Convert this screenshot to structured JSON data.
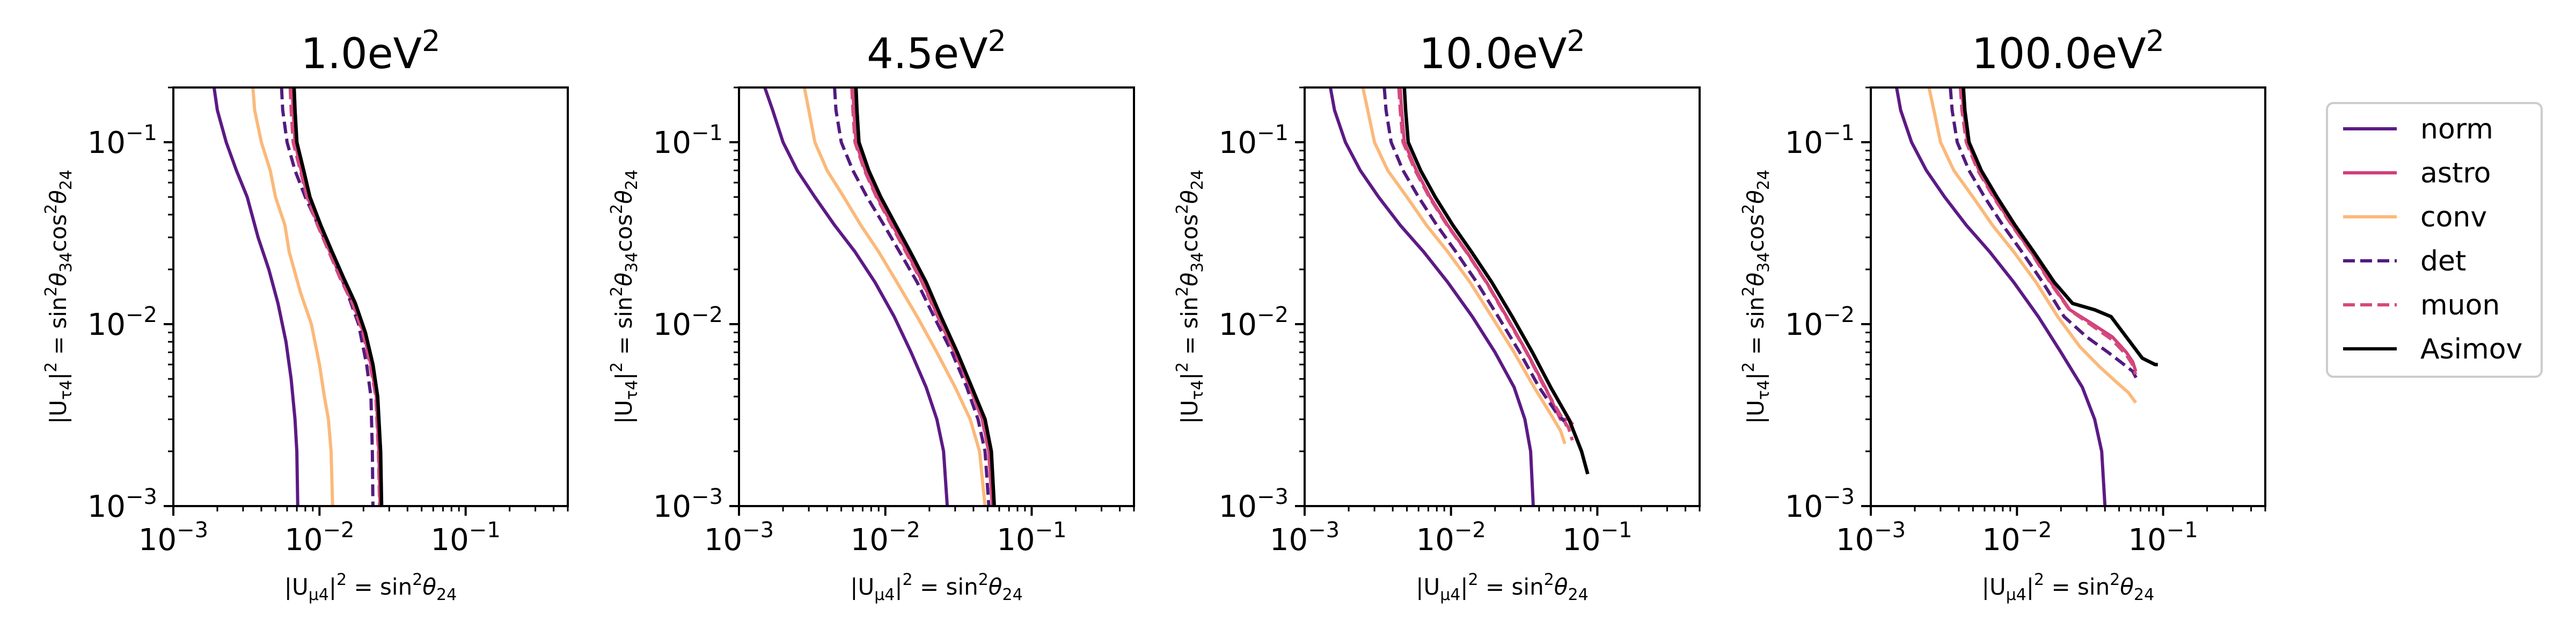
{
  "chart_data": [
    {
      "type": "line",
      "title": "1.0eV",
      "title_sup": "2",
      "xscale": "log",
      "yscale": "log",
      "xlim": [
        0.001,
        0.5
      ],
      "ylim": [
        0.001,
        0.2
      ],
      "series": [
        {
          "name": "norm",
          "color": "#5c1a85",
          "dash": false,
          "x": [
            0.0019,
            0.002,
            0.0023,
            0.0027,
            0.0032,
            0.0038,
            0.0045,
            0.0052,
            0.0059,
            0.0064,
            0.0068,
            0.007,
            0.0071
          ],
          "y": [
            0.2,
            0.15,
            0.1,
            0.07,
            0.05,
            0.03,
            0.02,
            0.013,
            0.008,
            0.005,
            0.003,
            0.002,
            0.001
          ]
        },
        {
          "name": "astro",
          "color": "#d13f7c",
          "dash": false,
          "x": [
            0.0065,
            0.0066,
            0.0068,
            0.0075,
            0.0083,
            0.0098,
            0.0118,
            0.014,
            0.017,
            0.02,
            0.0225,
            0.0245,
            0.0255,
            0.026
          ],
          "y": [
            0.2,
            0.15,
            0.1,
            0.07,
            0.05,
            0.035,
            0.025,
            0.018,
            0.013,
            0.009,
            0.006,
            0.004,
            0.002,
            0.001
          ]
        },
        {
          "name": "conv",
          "color": "#fbb97a",
          "dash": false,
          "x": [
            0.0035,
            0.0036,
            0.004,
            0.0046,
            0.005,
            0.0058,
            0.0062,
            0.0074,
            0.0088,
            0.01,
            0.0108,
            0.0115,
            0.012,
            0.0123
          ],
          "y": [
            0.2,
            0.15,
            0.1,
            0.07,
            0.05,
            0.035,
            0.025,
            0.015,
            0.01,
            0.006,
            0.004,
            0.003,
            0.002,
            0.001
          ]
        },
        {
          "name": "det",
          "color": "#521b80",
          "dash": true,
          "x": [
            0.0055,
            0.0056,
            0.006,
            0.0068,
            0.008,
            0.0098,
            0.012,
            0.015,
            0.0185,
            0.021,
            0.0225,
            0.023,
            0.0232
          ],
          "y": [
            0.2,
            0.15,
            0.1,
            0.07,
            0.05,
            0.035,
            0.025,
            0.016,
            0.01,
            0.006,
            0.004,
            0.002,
            0.001
          ]
        },
        {
          "name": "muon",
          "color": "#d6497c",
          "dash": true,
          "x": [
            0.0063,
            0.0064,
            0.0066,
            0.0074,
            0.0082,
            0.0097,
            0.0116,
            0.0138,
            0.0168,
            0.0198,
            0.0222,
            0.0243,
            0.0253,
            0.0258
          ],
          "y": [
            0.2,
            0.15,
            0.1,
            0.07,
            0.05,
            0.035,
            0.025,
            0.018,
            0.013,
            0.009,
            0.006,
            0.004,
            0.002,
            0.001
          ]
        },
        {
          "name": "Asimov",
          "color": "#000000",
          "dash": false,
          "x": [
            0.0067,
            0.0068,
            0.007,
            0.0078,
            0.0086,
            0.0102,
            0.0122,
            0.0146,
            0.0176,
            0.0206,
            0.0232,
            0.025,
            0.0262,
            0.0266
          ],
          "y": [
            0.2,
            0.15,
            0.1,
            0.07,
            0.05,
            0.035,
            0.025,
            0.018,
            0.013,
            0.009,
            0.006,
            0.004,
            0.002,
            0.001
          ]
        }
      ]
    },
    {
      "type": "line",
      "title": "4.5eV",
      "title_sup": "2",
      "xscale": "log",
      "yscale": "log",
      "xlim": [
        0.001,
        0.5
      ],
      "ylim": [
        0.001,
        0.2
      ],
      "series": [
        {
          "name": "norm",
          "color": "#5c1a85",
          "dash": false,
          "x": [
            0.0015,
            0.0017,
            0.002,
            0.0025,
            0.0033,
            0.0045,
            0.0062,
            0.0085,
            0.0115,
            0.015,
            0.019,
            0.0225,
            0.025,
            0.0265
          ],
          "y": [
            0.2,
            0.15,
            0.1,
            0.07,
            0.05,
            0.035,
            0.025,
            0.017,
            0.011,
            0.007,
            0.0045,
            0.003,
            0.002,
            0.001
          ]
        },
        {
          "name": "astro",
          "color": "#d13f7c",
          "dash": false,
          "x": [
            0.006,
            0.0061,
            0.0063,
            0.0073,
            0.0088,
            0.0112,
            0.014,
            0.018,
            0.023,
            0.03,
            0.038,
            0.046,
            0.051,
            0.054
          ],
          "y": [
            0.2,
            0.15,
            0.1,
            0.07,
            0.05,
            0.035,
            0.025,
            0.017,
            0.011,
            0.007,
            0.0045,
            0.003,
            0.002,
            0.001
          ]
        },
        {
          "name": "conv",
          "color": "#fbb97a",
          "dash": false,
          "x": [
            0.0028,
            0.003,
            0.0033,
            0.004,
            0.0052,
            0.0068,
            0.009,
            0.012,
            0.0165,
            0.0225,
            0.03,
            0.038,
            0.044,
            0.048
          ],
          "y": [
            0.2,
            0.15,
            0.1,
            0.07,
            0.05,
            0.035,
            0.025,
            0.017,
            0.011,
            0.007,
            0.0045,
            0.003,
            0.002,
            0.001
          ]
        },
        {
          "name": "det",
          "color": "#521b80",
          "dash": true,
          "x": [
            0.0045,
            0.0046,
            0.005,
            0.006,
            0.0075,
            0.0098,
            0.0125,
            0.0165,
            0.0215,
            0.0285,
            0.036,
            0.043,
            0.048,
            0.051
          ],
          "y": [
            0.2,
            0.15,
            0.1,
            0.07,
            0.05,
            0.035,
            0.025,
            0.017,
            0.011,
            0.007,
            0.0045,
            0.003,
            0.002,
            0.001
          ]
        },
        {
          "name": "muon",
          "color": "#d6497c",
          "dash": true,
          "x": [
            0.0059,
            0.006,
            0.0062,
            0.0072,
            0.0087,
            0.011,
            0.0138,
            0.0178,
            0.0228,
            0.0298,
            0.0378,
            0.0458,
            0.0508,
            0.0538
          ],
          "y": [
            0.2,
            0.15,
            0.1,
            0.07,
            0.05,
            0.035,
            0.025,
            0.017,
            0.011,
            0.007,
            0.0045,
            0.003,
            0.002,
            0.001
          ]
        },
        {
          "name": "Asimov",
          "color": "#000000",
          "dash": false,
          "x": [
            0.0063,
            0.0064,
            0.0066,
            0.0077,
            0.0093,
            0.0118,
            0.0148,
            0.019,
            0.024,
            0.031,
            0.039,
            0.048,
            0.053,
            0.0555
          ],
          "y": [
            0.2,
            0.15,
            0.1,
            0.07,
            0.05,
            0.035,
            0.025,
            0.017,
            0.011,
            0.007,
            0.0045,
            0.003,
            0.002,
            0.001
          ]
        }
      ]
    },
    {
      "type": "line",
      "title": "10.0eV",
      "title_sup": "2",
      "xscale": "log",
      "yscale": "log",
      "xlim": [
        0.001,
        0.5
      ],
      "ylim": [
        0.001,
        0.2
      ],
      "series": [
        {
          "name": "norm",
          "color": "#5c1a85",
          "dash": false,
          "x": [
            0.0015,
            0.0016,
            0.0019,
            0.0024,
            0.0032,
            0.0045,
            0.0065,
            0.0095,
            0.014,
            0.02,
            0.027,
            0.032,
            0.035,
            0.0365
          ],
          "y": [
            0.2,
            0.15,
            0.1,
            0.07,
            0.05,
            0.035,
            0.025,
            0.017,
            0.011,
            0.007,
            0.0045,
            0.003,
            0.002,
            0.001
          ]
        },
        {
          "name": "astro",
          "color": "#d13f7c",
          "dash": false,
          "x": [
            0.0045,
            0.0046,
            0.0048,
            0.0058,
            0.0072,
            0.0095,
            0.0128,
            0.0175,
            0.024,
            0.033,
            0.044,
            0.056,
            0.064,
            0.068
          ],
          "y": [
            0.2,
            0.15,
            0.1,
            0.07,
            0.05,
            0.035,
            0.025,
            0.017,
            0.011,
            0.007,
            0.0045,
            0.003,
            0.003,
            0.0028
          ]
        },
        {
          "name": "conv",
          "color": "#fbb97a",
          "dash": false,
          "x": [
            0.0025,
            0.0027,
            0.003,
            0.0037,
            0.005,
            0.0068,
            0.0095,
            0.0135,
            0.019,
            0.027,
            0.037,
            0.048,
            0.056,
            0.06
          ],
          "y": [
            0.2,
            0.15,
            0.1,
            0.07,
            0.05,
            0.035,
            0.025,
            0.017,
            0.011,
            0.007,
            0.0045,
            0.0032,
            0.0026,
            0.0022
          ]
        },
        {
          "name": "det",
          "color": "#521b80",
          "dash": true,
          "x": [
            0.0035,
            0.0036,
            0.0039,
            0.0047,
            0.006,
            0.008,
            0.0108,
            0.015,
            0.021,
            0.0295,
            0.04,
            0.052,
            0.06,
            0.064
          ],
          "y": [
            0.2,
            0.15,
            0.1,
            0.07,
            0.05,
            0.035,
            0.025,
            0.017,
            0.011,
            0.007,
            0.0045,
            0.0033,
            0.0029,
            0.0026
          ]
        },
        {
          "name": "muon",
          "color": "#d6497c",
          "dash": true,
          "x": [
            0.0044,
            0.0045,
            0.0047,
            0.0057,
            0.0071,
            0.0094,
            0.0127,
            0.0174,
            0.0238,
            0.0328,
            0.0435,
            0.0555,
            0.0635,
            0.0675
          ],
          "y": [
            0.2,
            0.15,
            0.1,
            0.07,
            0.05,
            0.035,
            0.025,
            0.017,
            0.011,
            0.007,
            0.0045,
            0.0032,
            0.0027,
            0.0023
          ]
        },
        {
          "name": "Asimov",
          "color": "#000000",
          "dash": false,
          "x": [
            0.0048,
            0.0049,
            0.0051,
            0.0062,
            0.0078,
            0.0103,
            0.0138,
            0.019,
            0.0262,
            0.036,
            0.048,
            0.064,
            0.078,
            0.086
          ],
          "y": [
            0.2,
            0.15,
            0.1,
            0.07,
            0.05,
            0.035,
            0.025,
            0.017,
            0.011,
            0.007,
            0.0045,
            0.003,
            0.002,
            0.0015
          ]
        }
      ]
    },
    {
      "type": "line",
      "title": "100.0eV",
      "title_sup": "2",
      "xscale": "log",
      "yscale": "log",
      "xlim": [
        0.001,
        0.5
      ],
      "ylim": [
        0.001,
        0.2
      ],
      "series": [
        {
          "name": "norm",
          "color": "#5c1a85",
          "dash": false,
          "x": [
            0.0015,
            0.0016,
            0.0019,
            0.0024,
            0.0032,
            0.0045,
            0.0065,
            0.0095,
            0.014,
            0.02,
            0.028,
            0.034,
            0.038,
            0.04
          ],
          "y": [
            0.2,
            0.15,
            0.1,
            0.07,
            0.05,
            0.035,
            0.025,
            0.017,
            0.011,
            0.007,
            0.0045,
            0.003,
            0.002,
            0.001
          ]
        },
        {
          "name": "astro",
          "color": "#d13f7c",
          "dash": false,
          "x": [
            0.0042,
            0.0043,
            0.0046,
            0.0055,
            0.007,
            0.0093,
            0.0125,
            0.017,
            0.023,
            0.033,
            0.045,
            0.056,
            0.062,
            0.065
          ],
          "y": [
            0.2,
            0.15,
            0.1,
            0.07,
            0.05,
            0.035,
            0.025,
            0.017,
            0.012,
            0.01,
            0.0085,
            0.007,
            0.0062,
            0.0055
          ]
        },
        {
          "name": "conv",
          "color": "#fbb97a",
          "dash": false,
          "x": [
            0.0025,
            0.0027,
            0.003,
            0.0037,
            0.005,
            0.0068,
            0.0095,
            0.0135,
            0.019,
            0.027,
            0.037,
            0.048,
            0.058,
            0.065
          ],
          "y": [
            0.2,
            0.15,
            0.1,
            0.07,
            0.05,
            0.035,
            0.025,
            0.017,
            0.011,
            0.0075,
            0.0058,
            0.0048,
            0.0042,
            0.0037
          ]
        },
        {
          "name": "det",
          "color": "#521b80",
          "dash": true,
          "x": [
            0.0035,
            0.0036,
            0.0039,
            0.0047,
            0.006,
            0.008,
            0.0108,
            0.015,
            0.021,
            0.03,
            0.042,
            0.054,
            0.062,
            0.066
          ],
          "y": [
            0.2,
            0.15,
            0.1,
            0.07,
            0.05,
            0.035,
            0.025,
            0.017,
            0.011,
            0.0085,
            0.007,
            0.006,
            0.0055,
            0.005
          ]
        },
        {
          "name": "muon",
          "color": "#d6497c",
          "dash": true,
          "x": [
            0.0041,
            0.0042,
            0.0045,
            0.0054,
            0.0069,
            0.0092,
            0.0124,
            0.0168,
            0.0228,
            0.0328,
            0.0448,
            0.0558,
            0.0618,
            0.0648
          ],
          "y": [
            0.2,
            0.15,
            0.1,
            0.07,
            0.05,
            0.035,
            0.025,
            0.017,
            0.012,
            0.0098,
            0.0082,
            0.0068,
            0.006,
            0.0053
          ]
        },
        {
          "name": "Asimov",
          "color": "#000000",
          "dash": false,
          "x": [
            0.0043,
            0.0044,
            0.0047,
            0.0057,
            0.0073,
            0.0097,
            0.013,
            0.018,
            0.024,
            0.034,
            0.044,
            0.056,
            0.072,
            0.088,
            0.092
          ],
          "y": [
            0.2,
            0.15,
            0.1,
            0.07,
            0.05,
            0.035,
            0.025,
            0.017,
            0.013,
            0.012,
            0.011,
            0.0085,
            0.0065,
            0.006,
            0.006
          ]
        }
      ]
    }
  ],
  "axes": {
    "xlabel_main": "|U",
    "xlabel_sub": "μ4",
    "xlabel_rest": "|",
    "xlabel_sup": "2",
    "xlabel_rhs": " = sin",
    "xlabel_sup2": "2",
    "xlabel_theta": "θ",
    "xlabel_theta_sub": "24",
    "ylabel_main": "|U",
    "ylabel_sub": "τ4",
    "ylabel_rest": "|",
    "ylabel_sup": "2",
    "ylabel_rhs": " = sin",
    "ylabel_sup2": "2",
    "ylabel_theta": "θ",
    "ylabel_theta_sub": "34",
    "ylabel_cos": "cos",
    "ylabel_sup3": "2",
    "ylabel_theta2": "θ",
    "ylabel_theta2_sub": "24",
    "tick_base": "10",
    "x_ticks": [
      {
        "v": 0.001,
        "exp": "−3"
      },
      {
        "v": 0.01,
        "exp": "−2"
      },
      {
        "v": 0.1,
        "exp": "−1"
      }
    ],
    "y_ticks": [
      {
        "v": 0.001,
        "exp": "−3"
      },
      {
        "v": 0.01,
        "exp": "−2"
      },
      {
        "v": 0.1,
        "exp": "−1"
      }
    ]
  },
  "legend": {
    "placement": "right",
    "entries": [
      {
        "name": "norm",
        "color": "#5c1a85",
        "dash": false
      },
      {
        "name": "astro",
        "color": "#d13f7c",
        "dash": false
      },
      {
        "name": "conv",
        "color": "#fbb97a",
        "dash": false
      },
      {
        "name": "det",
        "color": "#521b80",
        "dash": true
      },
      {
        "name": "muon",
        "color": "#d6497c",
        "dash": true
      },
      {
        "name": "Asimov",
        "color": "#000000",
        "dash": false
      }
    ]
  }
}
